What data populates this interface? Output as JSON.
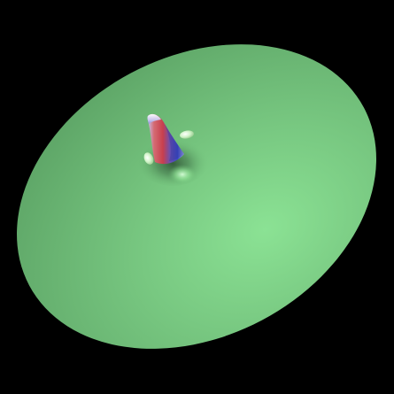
{
  "scene": {
    "background_color": "#000000",
    "surface_color": "#6fbf78",
    "surface_highlight_color": "#8fe596",
    "spike_colors": {
      "red": "#d8545a",
      "blue": "#4a56c9",
      "lavender": "#b9b7e9",
      "white": "#ffffff"
    }
  }
}
